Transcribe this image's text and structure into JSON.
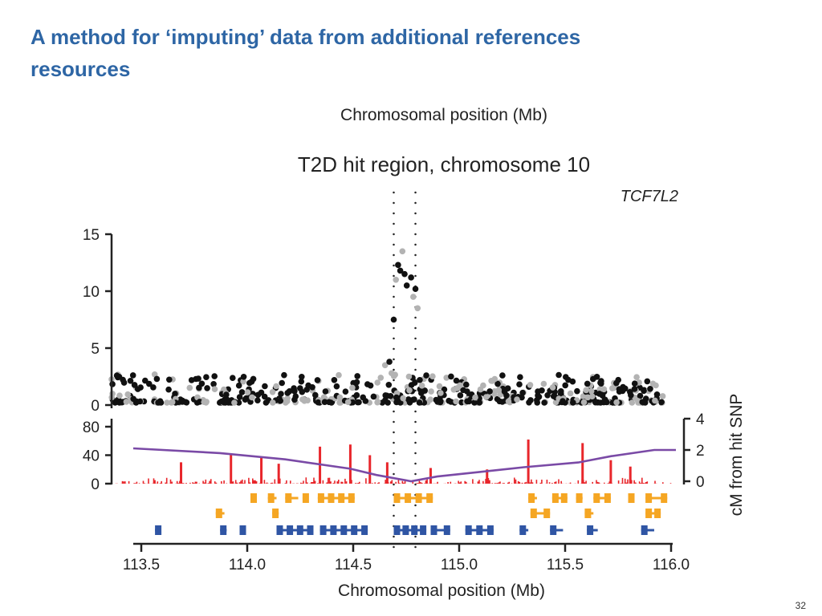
{
  "slide": {
    "title_line1": "A method for ‘imputing’ data from additional references",
    "title_line2": "resources",
    "page_number": "32"
  },
  "figure": {
    "top_axis_label": "Chromosomal position (Mb)",
    "panel_title": "T2D hit region, chromosome 10",
    "gene_label": "TCF7L2",
    "right_axis_label": "cM from hit SNP",
    "bottom_axis_label": "Chromosomal position (Mb)",
    "colors": {
      "typed_snps": "#111111",
      "imputed_snps": "#b3b3b3",
      "recombination_rate": "#e8262b",
      "genetic_map": "#7a4aa6",
      "genes_orange": "#f5a623",
      "genes_blue": "#2f55a4",
      "hit_lines": "#222222"
    }
  },
  "chart_data": {
    "type": "scatter",
    "panels": [
      {
        "name": "association",
        "y_ticks": [
          "0",
          "5",
          "10",
          "15"
        ],
        "ylim": [
          0,
          15
        ],
        "xlim": [
          113.4,
          116.0
        ],
        "background_points_range": [
          0,
          2.5
        ],
        "peak_points": [
          {
            "x": 114.7,
            "y": 7.5,
            "shade": "dark"
          },
          {
            "x": 114.71,
            "y": 11.0,
            "shade": "light"
          },
          {
            "x": 114.72,
            "y": 12.3,
            "shade": "dark"
          },
          {
            "x": 114.73,
            "y": 11.8,
            "shade": "dark"
          },
          {
            "x": 114.74,
            "y": 13.5,
            "shade": "light"
          },
          {
            "x": 114.75,
            "y": 11.5,
            "shade": "dark"
          },
          {
            "x": 114.76,
            "y": 10.5,
            "shade": "dark"
          },
          {
            "x": 114.78,
            "y": 11.2,
            "shade": "dark"
          },
          {
            "x": 114.79,
            "y": 9.5,
            "shade": "light"
          },
          {
            "x": 114.8,
            "y": 10.2,
            "shade": "dark"
          },
          {
            "x": 114.81,
            "y": 8.5,
            "shade": "light"
          },
          {
            "x": 114.66,
            "y": 3.5,
            "shade": "light"
          },
          {
            "x": 114.68,
            "y": 3.8,
            "shade": "dark"
          },
          {
            "x": 114.69,
            "y": 2.8,
            "shade": "light"
          },
          {
            "x": 114.77,
            "y": 2.5,
            "shade": "light"
          },
          {
            "x": 114.82,
            "y": 2.2,
            "shade": "dark"
          },
          {
            "x": 114.85,
            "y": 2.6,
            "shade": "dark"
          },
          {
            "x": 114.83,
            "y": 1.7,
            "shade": "light"
          },
          {
            "x": 114.64,
            "y": 2.4,
            "shade": "light"
          }
        ]
      },
      {
        "name": "recombination",
        "y_ticks_left": [
          "0",
          "40",
          "80"
        ],
        "ylim_left": [
          0,
          80
        ],
        "y_ticks_right": [
          "0",
          "2",
          "4"
        ],
        "ylim_right": [
          0,
          4
        ],
        "recombination_peaks": [
          {
            "x": 113.72,
            "y": 30
          },
          {
            "x": 113.95,
            "y": 42
          },
          {
            "x": 114.09,
            "y": 38
          },
          {
            "x": 114.17,
            "y": 28
          },
          {
            "x": 114.36,
            "y": 52
          },
          {
            "x": 114.5,
            "y": 55
          },
          {
            "x": 114.59,
            "y": 40
          },
          {
            "x": 114.67,
            "y": 30
          },
          {
            "x": 114.87,
            "y": 22
          },
          {
            "x": 115.13,
            "y": 20
          },
          {
            "x": 115.32,
            "y": 62
          },
          {
            "x": 115.57,
            "y": 57
          },
          {
            "x": 115.7,
            "y": 33
          },
          {
            "x": 115.79,
            "y": 24
          }
        ],
        "genetic_map_cM": {
          "x": [
            113.5,
            113.9,
            114.2,
            114.5,
            114.62,
            114.78,
            114.9,
            115.1,
            115.3,
            115.55,
            115.7,
            115.9,
            116.0
          ],
          "y": [
            2.1,
            1.8,
            1.4,
            0.8,
            0.4,
            0.0,
            0.3,
            0.6,
            0.9,
            1.2,
            1.6,
            2.0,
            2.0
          ]
        }
      }
    ],
    "x_ticks": [
      "113.5",
      "114.0",
      "114.5",
      "115.0",
      "115.5",
      "116.0"
    ],
    "xlim": [
      113.4,
      116.0
    ],
    "hit_region_x": [
      114.7,
      114.8
    ],
    "genes": {
      "orange_row1": [
        [
          114.04,
          114.06
        ],
        [
          114.12,
          114.16
        ],
        [
          114.2,
          114.26
        ],
        [
          114.28,
          114.3
        ],
        [
          114.35,
          114.52
        ],
        [
          114.7,
          114.88
        ],
        [
          115.32,
          115.36
        ],
        [
          115.43,
          115.5
        ],
        [
          115.54,
          115.57
        ],
        [
          115.62,
          115.7
        ],
        [
          115.78,
          115.8
        ],
        [
          115.86,
          115.96
        ]
      ],
      "orange_row2": [
        [
          113.88,
          113.92
        ],
        [
          114.14,
          114.17
        ],
        [
          115.33,
          115.42
        ],
        [
          115.58,
          115.62
        ],
        [
          115.86,
          115.93
        ]
      ],
      "blue_row3": [
        [
          113.6,
          113.62
        ],
        [
          113.9,
          113.93
        ],
        [
          113.99,
          114.01
        ],
        [
          114.16,
          114.33
        ],
        [
          114.36,
          114.58
        ],
        [
          114.7,
          114.85
        ],
        [
          114.87,
          114.96
        ],
        [
          115.03,
          115.16
        ],
        [
          115.28,
          115.32
        ],
        [
          115.42,
          115.48
        ],
        [
          115.59,
          115.64
        ],
        [
          115.84,
          115.9
        ]
      ]
    }
  }
}
